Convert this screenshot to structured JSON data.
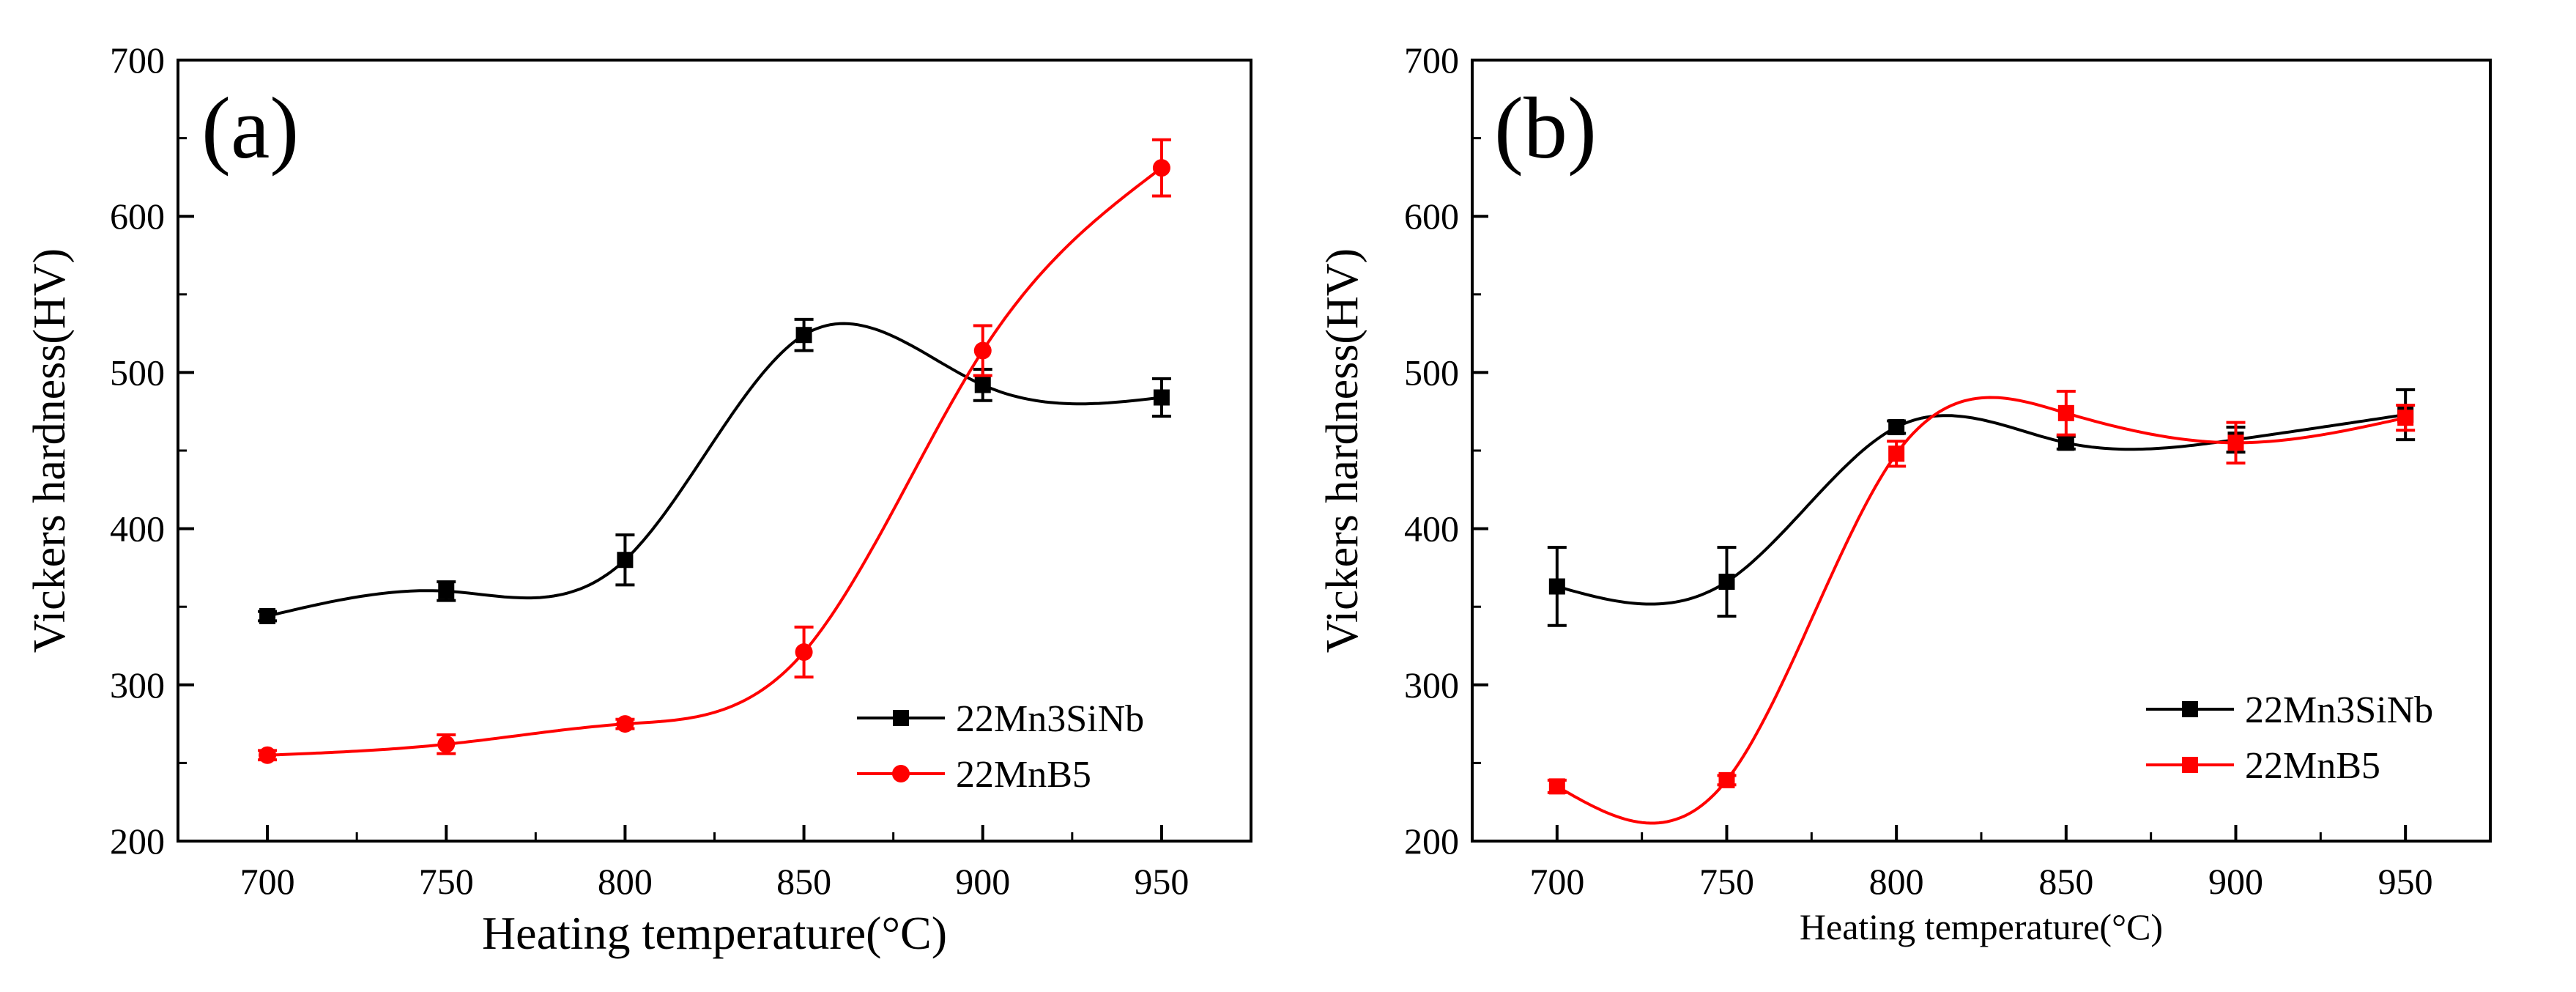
{
  "chart_data": [
    {
      "type": "line",
      "panel_label": "(a)",
      "xlabel": "Heating temperature(°C)",
      "ylabel": "Vickers hardness(HV)",
      "xlim": [
        675,
        975
      ],
      "ylim": [
        200,
        700
      ],
      "xticks": [
        700,
        750,
        800,
        850,
        900,
        950
      ],
      "yticks": [
        200,
        300,
        400,
        500,
        600,
        700
      ],
      "x_tick_labels": [
        "700",
        "750",
        "800",
        "850",
        "900",
        "950"
      ],
      "y_tick_labels": [
        "200",
        "300",
        "400",
        "500",
        "600",
        "700"
      ],
      "legend_position": "lower-right",
      "series": [
        {
          "name": "22Mn3SiNb",
          "color": "#000000",
          "marker": "square",
          "x": [
            700,
            750,
            800,
            850,
            900,
            950
          ],
          "y": [
            344,
            360,
            380,
            524,
            492,
            484
          ],
          "error": [
            3,
            6,
            16,
            10,
            10,
            12
          ]
        },
        {
          "name": "22MnB5",
          "color": "#ff0000",
          "marker": "circle",
          "x": [
            700,
            750,
            800,
            850,
            900,
            950
          ],
          "y": [
            255,
            262,
            275,
            321,
            514,
            631
          ],
          "error": [
            3,
            6,
            3,
            16,
            16,
            18
          ]
        }
      ]
    },
    {
      "type": "line",
      "panel_label": "(b)",
      "xlabel": "Heating temperature(°C)",
      "ylabel": "Vickers hardness(HV)",
      "xlim": [
        675,
        975
      ],
      "ylim": [
        200,
        700
      ],
      "xticks": [
        700,
        750,
        800,
        850,
        900,
        950
      ],
      "yticks": [
        200,
        300,
        400,
        500,
        600,
        700
      ],
      "x_tick_labels": [
        "700",
        "750",
        "800",
        "850",
        "900",
        "950"
      ],
      "y_tick_labels": [
        "200",
        "300",
        "400",
        "500",
        "600",
        "700"
      ],
      "legend_position": "lower-right",
      "series": [
        {
          "name": "22Mn3SiNb",
          "color": "#000000",
          "marker": "square",
          "x": [
            700,
            750,
            800,
            850,
            900,
            950
          ],
          "y": [
            363,
            366,
            465,
            455,
            457,
            473
          ],
          "error": [
            25,
            22,
            4,
            4,
            8,
            16
          ]
        },
        {
          "name": "22MnB5",
          "color": "#ff0000",
          "marker": "square",
          "x": [
            700,
            750,
            800,
            850,
            900,
            950
          ],
          "y": [
            235,
            239,
            448,
            474,
            455,
            471
          ],
          "error": [
            4,
            3,
            8,
            14,
            13,
            8
          ]
        }
      ]
    }
  ]
}
